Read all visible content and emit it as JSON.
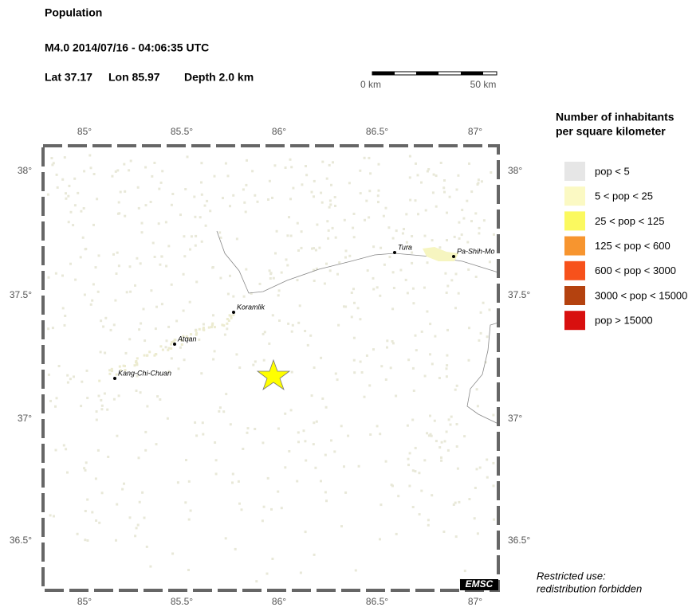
{
  "header": {
    "title": "Population",
    "event": "M4.0  2014/07/16 - 04:06:35 UTC",
    "lat": "Lat 37.17",
    "lon": "Lon  85.97",
    "depth": "Depth  2.0 km"
  },
  "scale_bar": {
    "start": "0 km",
    "end": "50 km"
  },
  "map": {
    "lon_ticks": [
      "85°",
      "85.5°",
      "86°",
      "86.5°",
      "87°"
    ],
    "lat_ticks": [
      "38°",
      "37.5°",
      "37°",
      "36.5°"
    ],
    "places": [
      "Tura",
      "Pa-Shih-Mo",
      "Koramlik",
      "Atqan",
      "Kang-Chi-Chuan"
    ],
    "credit": "EMSC"
  },
  "legend": {
    "title_lines": [
      "Number of inhabitants",
      "per square kilometer"
    ],
    "items": [
      {
        "label": "pop < 5",
        "color": "#e6e6e6"
      },
      {
        "label": "5 < pop < 25",
        "color": "#fbf9c3"
      },
      {
        "label": "25 < pop < 125",
        "color": "#fbf95f"
      },
      {
        "label": "125 < pop < 600",
        "color": "#f7952f"
      },
      {
        "label": "600 < pop < 3000",
        "color": "#f7511b"
      },
      {
        "label": "3000 < pop < 15000",
        "color": "#b4420f"
      },
      {
        "label": "pop > 15000",
        "color": "#d8100f"
      }
    ]
  },
  "notice": [
    "Restricted use:",
    "redistribution forbidden"
  ]
}
